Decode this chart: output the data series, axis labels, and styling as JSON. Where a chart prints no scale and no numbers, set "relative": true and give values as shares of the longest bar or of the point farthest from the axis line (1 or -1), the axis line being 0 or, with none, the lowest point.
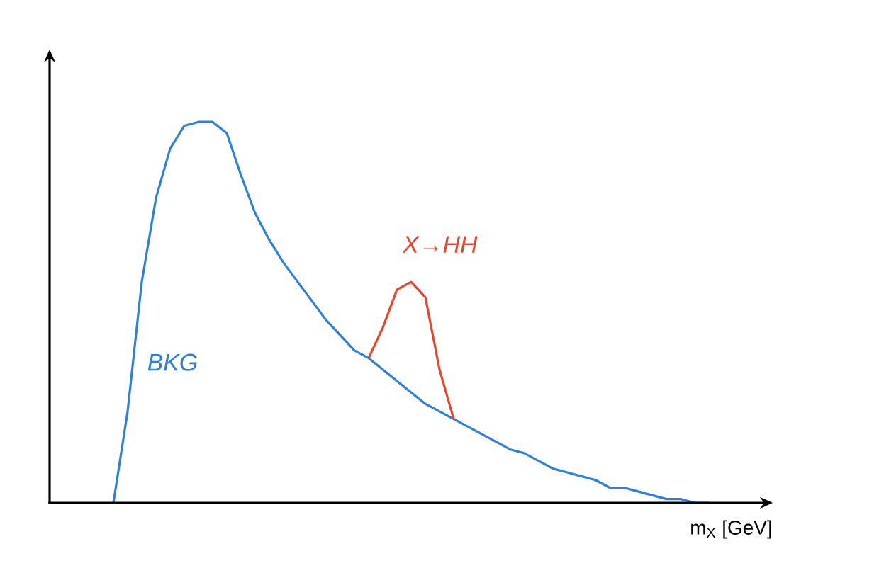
{
  "chart_data": {
    "type": "line",
    "relative": true,
    "xlabel": "m$_{X}$ [GeV]",
    "marker": "none",
    "categories": [
      null,
      null,
      null,
      null,
      null,
      null,
      null,
      null,
      null,
      null,
      null,
      null,
      null,
      null,
      null,
      null,
      null,
      null,
      null,
      null,
      null,
      null,
      null,
      null,
      null,
      null,
      null,
      null,
      null,
      null,
      null,
      null,
      null,
      null,
      null,
      null,
      null,
      null,
      null,
      null,
      null,
      null,
      null
    ],
    "series": [
      {
        "name": "BKG",
        "color": "#2f80d8",
        "values": [
          0,
          0.24,
          0.58,
          0.8,
          0.93,
          0.99,
          1,
          1,
          0.97,
          0.86,
          0.76,
          0.69,
          0.63,
          0.58,
          0.53,
          0.48,
          0.44,
          0.4,
          0.38,
          0.35,
          0.32,
          0.29,
          0.26,
          0.24,
          0.22,
          0.2,
          0.18,
          0.16,
          0.14,
          0.13,
          0.11,
          0.09,
          0.08,
          0.07,
          0.06,
          0.04,
          0.04,
          0.03,
          0.02,
          0.01,
          0.01,
          0,
          0
        ]
      },
      {
        "name": "*X→HH*",
        "color": "#e8452c",
        "values": [
          null,
          null,
          null,
          null,
          null,
          null,
          null,
          null,
          null,
          null,
          null,
          null,
          null,
          null,
          null,
          null,
          null,
          null,
          0.38,
          0.46,
          0.56,
          0.58,
          0.54,
          0.35,
          0.22,
          null,
          null,
          null,
          null,
          null,
          null,
          null,
          null,
          null,
          null,
          null,
          null,
          null,
          null,
          null,
          null,
          null,
          null
        ]
      }
    ]
  }
}
